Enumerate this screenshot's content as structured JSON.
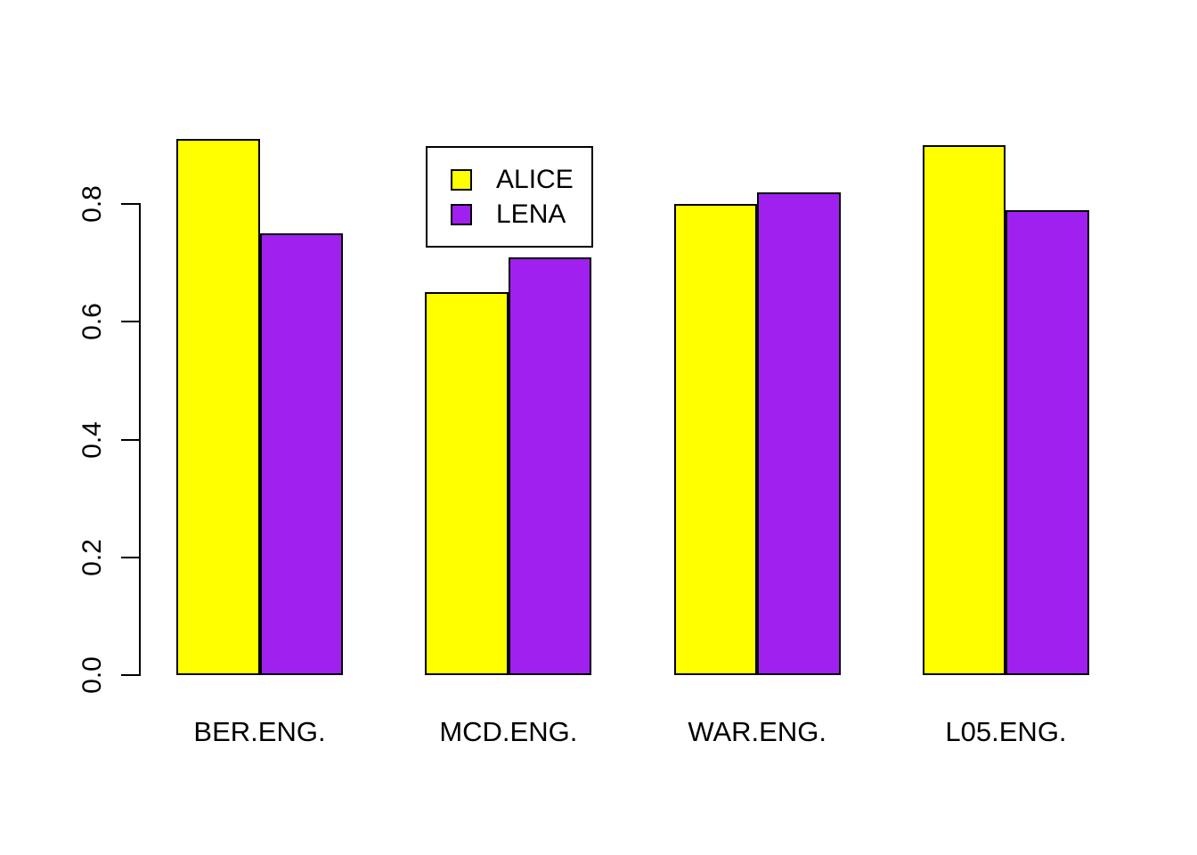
{
  "chart_data": {
    "type": "bar",
    "variant": "grouped",
    "title": "",
    "xlabel": "",
    "ylabel": "",
    "categories": [
      "BER.ENG.",
      "MCD.ENG.",
      "WAR.ENG.",
      "L05.ENG."
    ],
    "series": [
      {
        "name": "ALICE",
        "color": "#FFFF00",
        "values": [
          0.91,
          0.65,
          0.8,
          0.9
        ]
      },
      {
        "name": "LENA",
        "color": "#A020F0",
        "values": [
          0.75,
          0.71,
          0.82,
          0.79
        ]
      }
    ],
    "yticks": [
      0.0,
      0.2,
      0.4,
      0.6,
      0.8
    ],
    "ytick_labels": [
      "0.0",
      "0.2",
      "0.4",
      "0.6",
      "0.8"
    ],
    "ylim": [
      0,
      0.91
    ],
    "grid": false,
    "bar_border_color": "#000000",
    "background_color": "#FFFFFF",
    "legend_position": "top-center-left-inside"
  },
  "legend": {
    "items": [
      {
        "label": "ALICE",
        "color": "#FFFF00"
      },
      {
        "label": "LENA",
        "color": "#A020F0"
      }
    ]
  }
}
